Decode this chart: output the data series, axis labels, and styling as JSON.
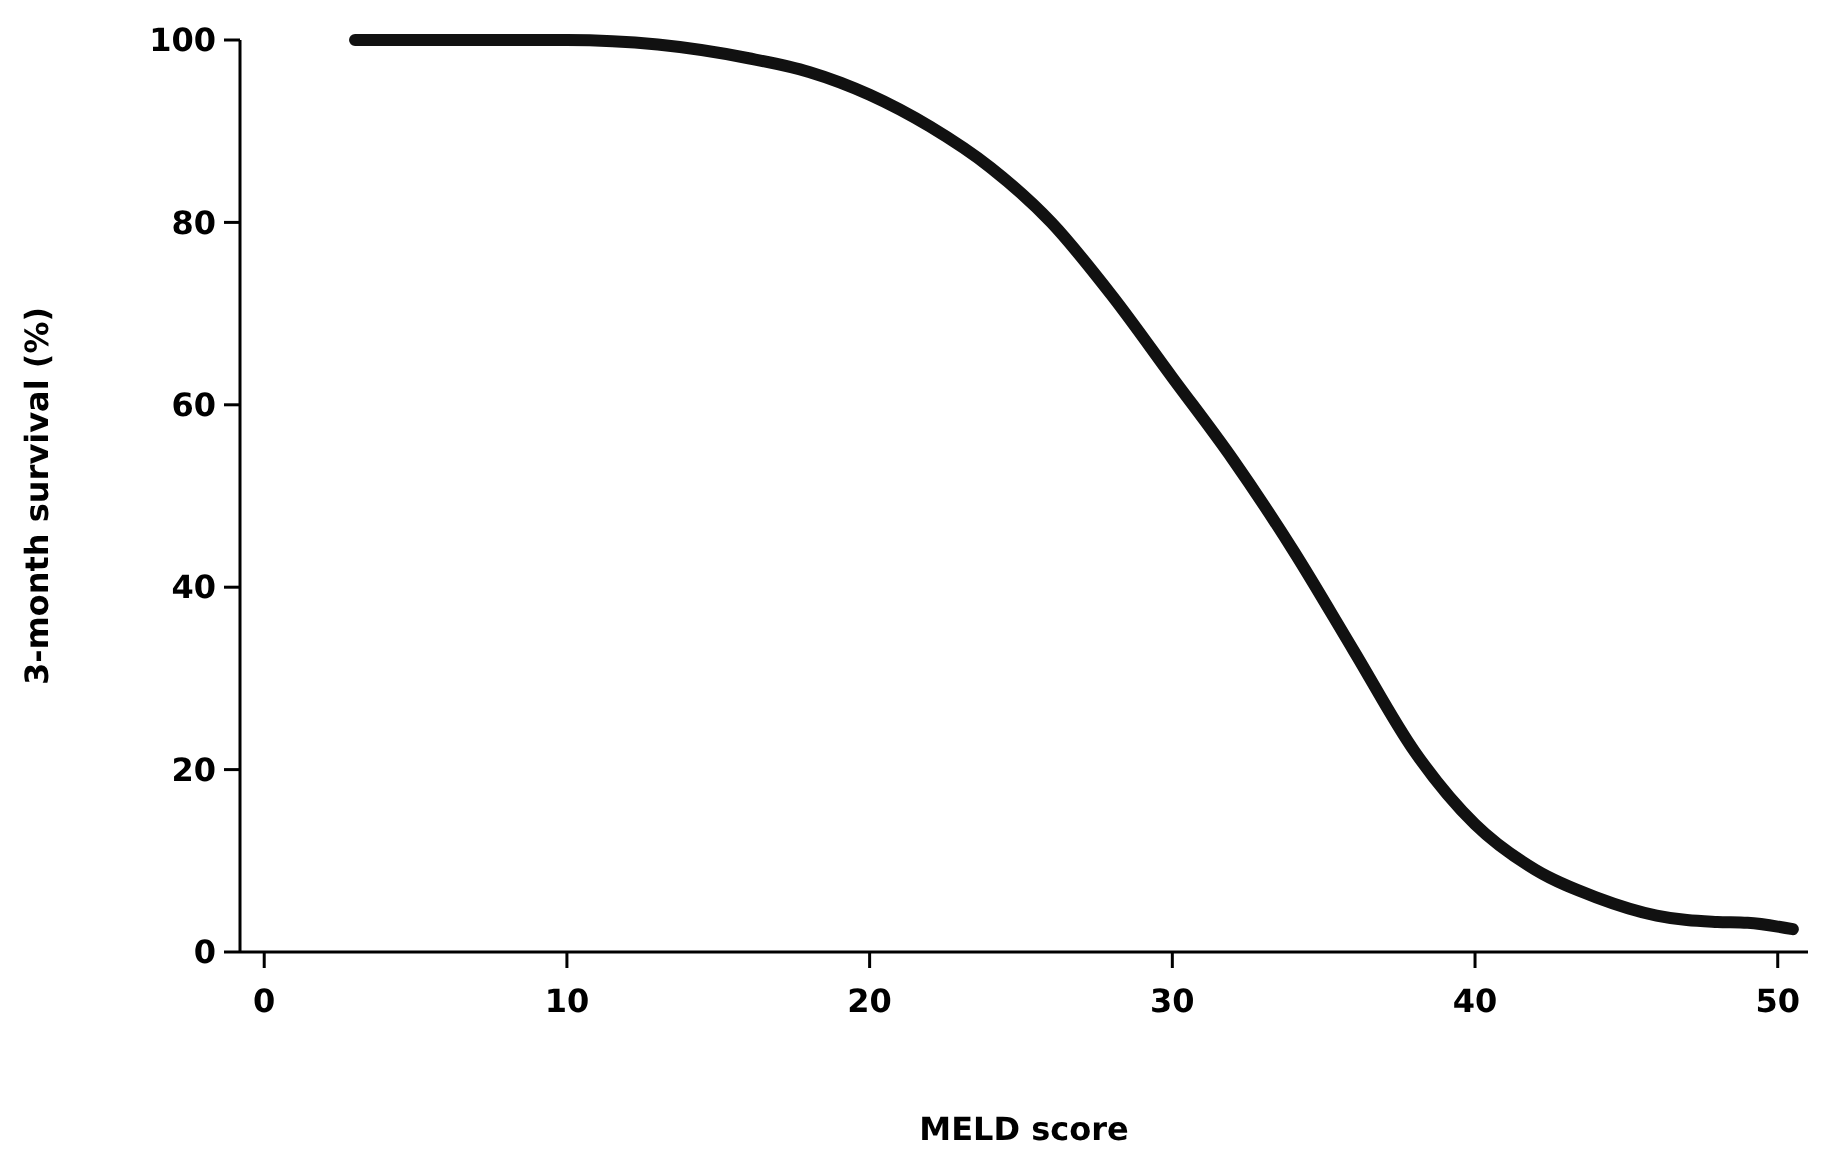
{
  "chart_data": {
    "type": "line",
    "xlabel": "MELD score",
    "ylabel": "3-month survival (%)",
    "x": [
      3,
      10,
      13,
      16,
      18,
      20,
      22,
      24,
      26,
      28,
      30,
      32,
      34,
      36,
      38,
      40,
      42,
      44,
      46,
      47,
      48,
      49,
      50.5
    ],
    "series": [
      {
        "color": "#111111",
        "values": [
          100,
          100,
          99.5,
          98,
          96.5,
          94,
          90.5,
          86,
          80,
          72,
          63,
          54,
          44,
          33,
          22,
          14,
          9,
          6,
          4,
          3.5,
          3.3,
          3.2,
          2.5
        ]
      }
    ],
    "xlim": [
      -0.8,
      51
    ],
    "xticks": [
      0,
      10,
      20,
      30,
      40,
      50
    ],
    "ylim": [
      0,
      100
    ],
    "yticks": [
      0,
      20,
      40,
      60,
      80,
      100
    ],
    "grid": false,
    "marker": "none",
    "line_style": "solid"
  }
}
